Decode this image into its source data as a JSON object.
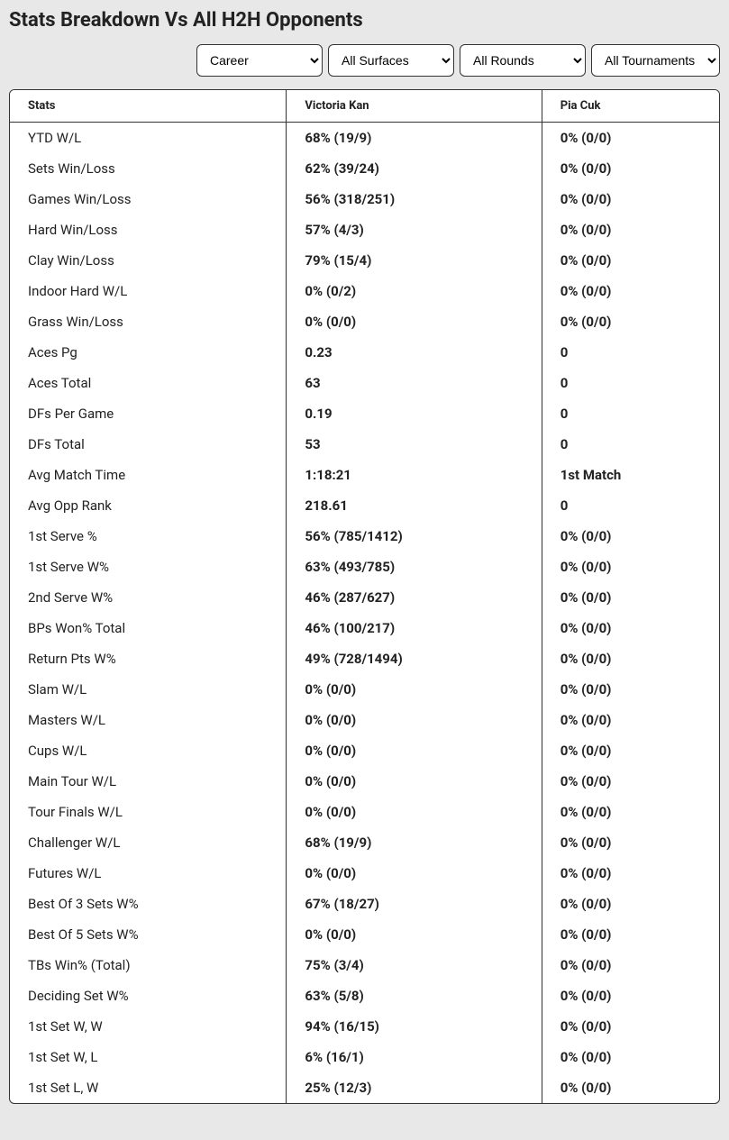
{
  "title": "Stats Breakdown Vs All H2H Opponents",
  "filters": {
    "timeframe": {
      "selected": "Career",
      "options": [
        "Career"
      ]
    },
    "surface": {
      "selected": "All Surfaces",
      "options": [
        "All Surfaces"
      ]
    },
    "round": {
      "selected": "All Rounds",
      "options": [
        "All Rounds"
      ]
    },
    "tournament": {
      "selected": "All Tournaments",
      "options": [
        "All Tournaments"
      ]
    }
  },
  "table": {
    "headers": {
      "stats": "Stats",
      "player1": "Victoria Kan",
      "player2": "Pia Cuk"
    },
    "rows": [
      {
        "stat": "YTD W/L",
        "p1": "68% (19/9)",
        "p2": "0% (0/0)"
      },
      {
        "stat": "Sets Win/Loss",
        "p1": "62% (39/24)",
        "p2": "0% (0/0)"
      },
      {
        "stat": "Games Win/Loss",
        "p1": "56% (318/251)",
        "p2": "0% (0/0)"
      },
      {
        "stat": "Hard Win/Loss",
        "p1": "57% (4/3)",
        "p2": "0% (0/0)"
      },
      {
        "stat": "Clay Win/Loss",
        "p1": "79% (15/4)",
        "p2": "0% (0/0)"
      },
      {
        "stat": "Indoor Hard W/L",
        "p1": "0% (0/2)",
        "p2": "0% (0/0)"
      },
      {
        "stat": "Grass Win/Loss",
        "p1": "0% (0/0)",
        "p2": "0% (0/0)"
      },
      {
        "stat": "Aces Pg",
        "p1": "0.23",
        "p2": "0"
      },
      {
        "stat": "Aces Total",
        "p1": "63",
        "p2": "0"
      },
      {
        "stat": "DFs Per Game",
        "p1": "0.19",
        "p2": "0"
      },
      {
        "stat": "DFs Total",
        "p1": "53",
        "p2": "0"
      },
      {
        "stat": "Avg Match Time",
        "p1": "1:18:21",
        "p2": "1st Match"
      },
      {
        "stat": "Avg Opp Rank",
        "p1": "218.61",
        "p2": "0"
      },
      {
        "stat": "1st Serve %",
        "p1": "56% (785/1412)",
        "p2": "0% (0/0)"
      },
      {
        "stat": "1st Serve W%",
        "p1": "63% (493/785)",
        "p2": "0% (0/0)"
      },
      {
        "stat": "2nd Serve W%",
        "p1": "46% (287/627)",
        "p2": "0% (0/0)"
      },
      {
        "stat": "BPs Won% Total",
        "p1": "46% (100/217)",
        "p2": "0% (0/0)"
      },
      {
        "stat": "Return Pts W%",
        "p1": "49% (728/1494)",
        "p2": "0% (0/0)"
      },
      {
        "stat": "Slam W/L",
        "p1": "0% (0/0)",
        "p2": "0% (0/0)"
      },
      {
        "stat": "Masters W/L",
        "p1": "0% (0/0)",
        "p2": "0% (0/0)"
      },
      {
        "stat": "Cups W/L",
        "p1": "0% (0/0)",
        "p2": "0% (0/0)"
      },
      {
        "stat": "Main Tour W/L",
        "p1": "0% (0/0)",
        "p2": "0% (0/0)"
      },
      {
        "stat": "Tour Finals W/L",
        "p1": "0% (0/0)",
        "p2": "0% (0/0)"
      },
      {
        "stat": "Challenger W/L",
        "p1": "68% (19/9)",
        "p2": "0% (0/0)"
      },
      {
        "stat": "Futures W/L",
        "p1": "0% (0/0)",
        "p2": "0% (0/0)"
      },
      {
        "stat": "Best Of 3 Sets W%",
        "p1": "67% (18/27)",
        "p2": "0% (0/0)"
      },
      {
        "stat": "Best Of 5 Sets W%",
        "p1": "0% (0/0)",
        "p2": "0% (0/0)"
      },
      {
        "stat": "TBs Win% (Total)",
        "p1": "75% (3/4)",
        "p2": "0% (0/0)"
      },
      {
        "stat": "Deciding Set W%",
        "p1": "63% (5/8)",
        "p2": "0% (0/0)"
      },
      {
        "stat": "1st Set W, W",
        "p1": "94% (16/15)",
        "p2": "0% (0/0)"
      },
      {
        "stat": "1st Set W, L",
        "p1": "6% (16/1)",
        "p2": "0% (0/0)"
      },
      {
        "stat": "1st Set L, W",
        "p1": "25% (12/3)",
        "p2": "0% (0/0)"
      }
    ]
  },
  "colors": {
    "background": "#e8e8e8",
    "tableBg": "#ffffff",
    "border": "#333333",
    "text": "#222222"
  }
}
